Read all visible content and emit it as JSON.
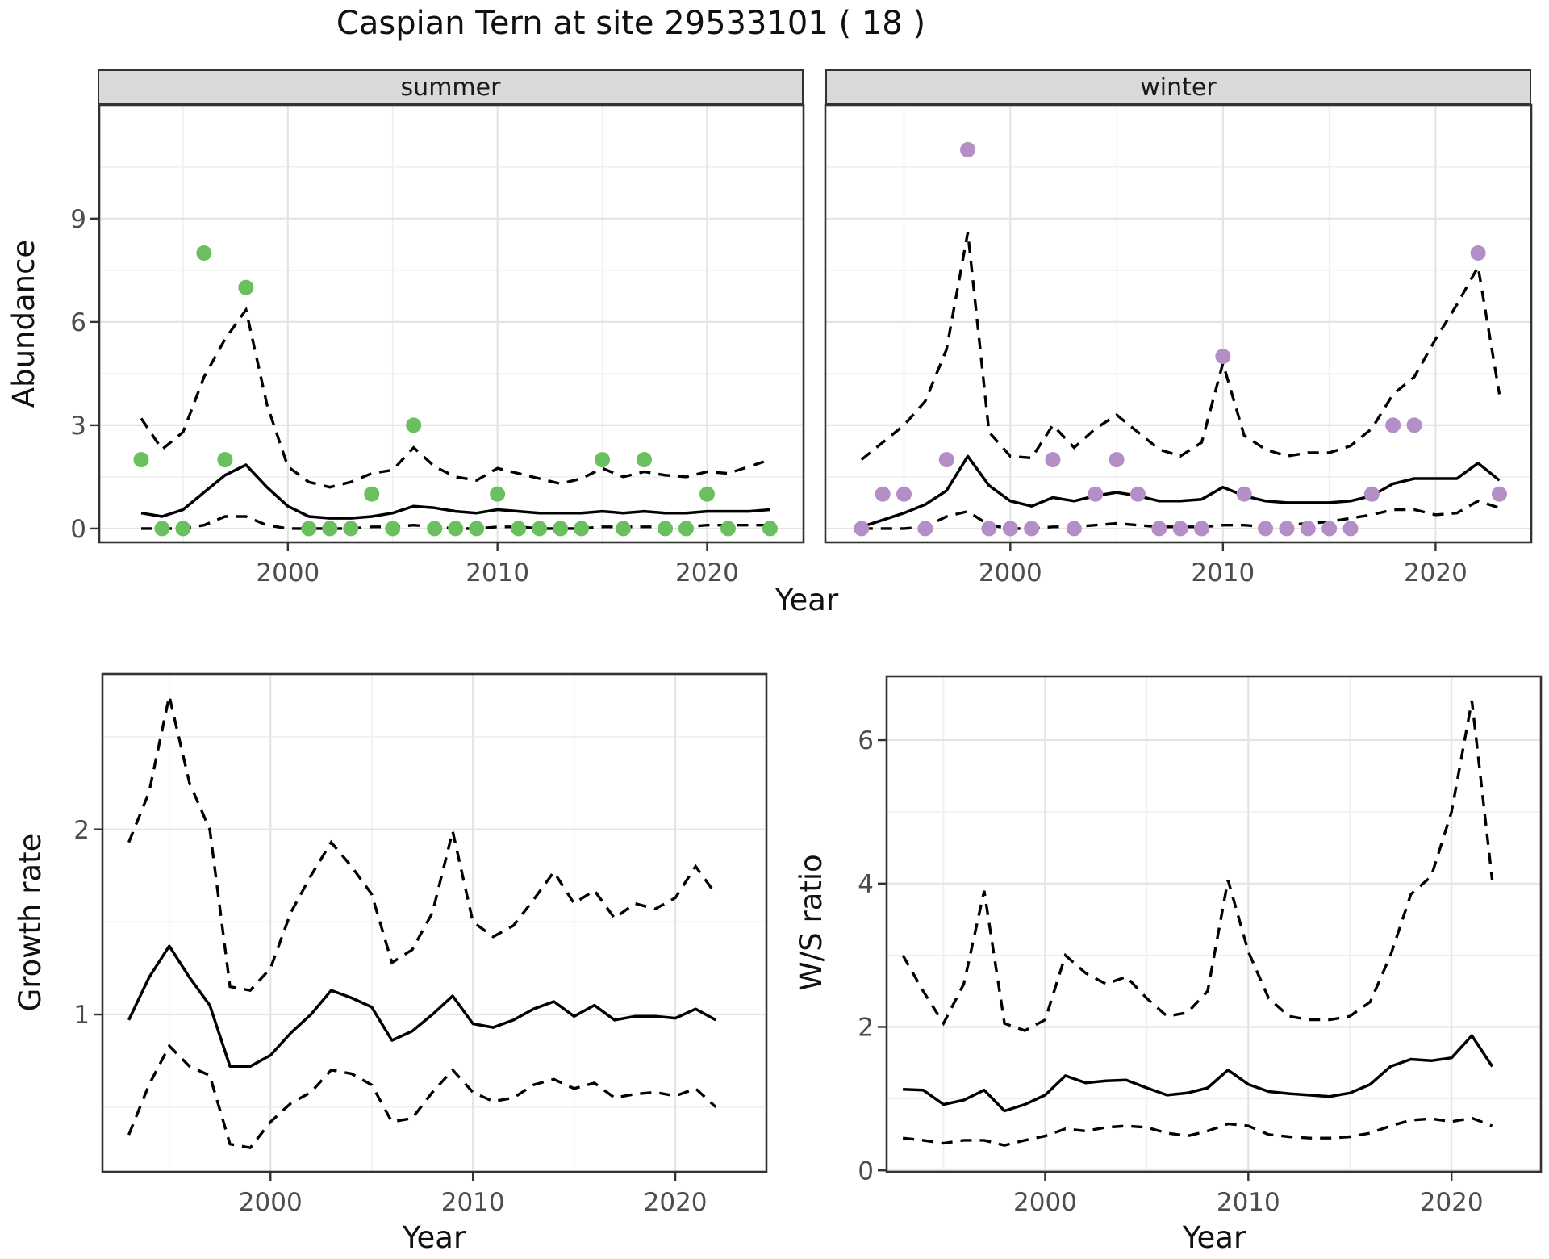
{
  "labels": {
    "title": "Caspian Tern at site 29533101 ( 18 )",
    "year": "Year",
    "abundance": "Abundance",
    "growth_rate": "Growth rate",
    "ws_ratio": "W/S ratio",
    "facet_summer": "summer",
    "facet_winter": "winter"
  },
  "colors": {
    "summer_points": "#6abf5e",
    "winter_points": "#b48ec6",
    "mean_line": "#000000",
    "ci_line": "#000000",
    "strip_bg": "#d9d9d9",
    "panel_border": "#333333",
    "grid_major": "#e4e4e4",
    "grid_minor": "#efefef",
    "tick_text": "#4d4d4d"
  },
  "chart_data": [
    {
      "id": "abundance-summer",
      "type": "line",
      "facet": "summer",
      "xlabel": "Year",
      "ylabel": "Abundance",
      "legend": "none",
      "grid": true,
      "xlim": [
        1991.0,
        2024.6
      ],
      "ylim": [
        -0.4,
        12.3
      ],
      "xticks": [
        2000,
        2010,
        2020
      ],
      "xticks_minor": [
        1995,
        2005,
        2015
      ],
      "yticks": [
        0,
        3,
        6,
        9
      ],
      "yticks_minor": [
        1.5,
        4.5,
        7.5,
        10.5
      ],
      "years": [
        1993,
        1994,
        1995,
        1996,
        1997,
        1998,
        1999,
        2000,
        2001,
        2002,
        2003,
        2004,
        2005,
        2006,
        2007,
        2008,
        2009,
        2010,
        2011,
        2012,
        2013,
        2014,
        2015,
        2016,
        2017,
        2018,
        2019,
        2020,
        2021,
        2022,
        2023
      ],
      "mean": [
        0.45,
        0.35,
        0.55,
        1.05,
        1.55,
        1.85,
        1.2,
        0.65,
        0.35,
        0.3,
        0.3,
        0.35,
        0.45,
        0.65,
        0.6,
        0.5,
        0.45,
        0.55,
        0.5,
        0.45,
        0.45,
        0.45,
        0.5,
        0.45,
        0.5,
        0.45,
        0.45,
        0.5,
        0.5,
        0.5,
        0.55
      ],
      "ci_upper": [
        3.2,
        2.3,
        2.8,
        4.4,
        5.5,
        6.35,
        3.6,
        1.8,
        1.35,
        1.2,
        1.35,
        1.6,
        1.7,
        2.35,
        1.8,
        1.5,
        1.4,
        1.75,
        1.6,
        1.45,
        1.3,
        1.45,
        1.75,
        1.5,
        1.65,
        1.55,
        1.5,
        1.65,
        1.6,
        1.8,
        2.0
      ],
      "ci_lower": [
        0,
        0,
        0,
        0.1,
        0.35,
        0.35,
        0.1,
        0,
        0,
        0,
        0,
        0.05,
        0.05,
        0.1,
        0.05,
        0,
        0,
        0.05,
        0.05,
        0,
        0,
        0,
        0.05,
        0.05,
        0.05,
        0.05,
        0.05,
        0.1,
        0.1,
        0.1,
        0.1
      ],
      "observations": [
        [
          1993,
          2
        ],
        [
          1994,
          0
        ],
        [
          1995,
          0
        ],
        [
          1996,
          8
        ],
        [
          1997,
          2
        ],
        [
          1998,
          7
        ],
        [
          2001,
          0
        ],
        [
          2002,
          0
        ],
        [
          2003,
          0
        ],
        [
          2004,
          1
        ],
        [
          2005,
          0
        ],
        [
          2006,
          3
        ],
        [
          2007,
          0
        ],
        [
          2008,
          0
        ],
        [
          2009,
          0
        ],
        [
          2010,
          1
        ],
        [
          2011,
          0
        ],
        [
          2012,
          0
        ],
        [
          2013,
          0
        ],
        [
          2014,
          0
        ],
        [
          2015,
          2
        ],
        [
          2016,
          0
        ],
        [
          2017,
          2
        ],
        [
          2018,
          0
        ],
        [
          2019,
          0
        ],
        [
          2020,
          1
        ],
        [
          2021,
          0
        ],
        [
          2023,
          0
        ]
      ],
      "point_color": "#6abf5e"
    },
    {
      "id": "abundance-winter",
      "type": "line",
      "facet": "winter",
      "xlabel": "Year",
      "ylabel": "Abundance",
      "legend": "none",
      "grid": true,
      "xlim": [
        1991.3,
        2024.5
      ],
      "ylim": [
        -0.4,
        12.3
      ],
      "xticks": [
        2000,
        2010,
        2020
      ],
      "xticks_minor": [
        1995,
        2005,
        2015
      ],
      "yticks": [
        0,
        3,
        6,
        9
      ],
      "yticks_minor": [
        1.5,
        4.5,
        7.5,
        10.5
      ],
      "years": [
        1993,
        1994,
        1995,
        1996,
        1997,
        1998,
        1999,
        2000,
        2001,
        2002,
        2003,
        2004,
        2005,
        2006,
        2007,
        2008,
        2009,
        2010,
        2011,
        2012,
        2013,
        2014,
        2015,
        2016,
        2017,
        2018,
        2019,
        2020,
        2021,
        2022,
        2023
      ],
      "mean": [
        0.05,
        0.25,
        0.45,
        0.7,
        1.1,
        2.1,
        1.25,
        0.8,
        0.65,
        0.9,
        0.8,
        0.95,
        1.05,
        0.95,
        0.8,
        0.8,
        0.85,
        1.2,
        0.95,
        0.8,
        0.75,
        0.75,
        0.75,
        0.8,
        0.95,
        1.3,
        1.45,
        1.45,
        1.45,
        1.9,
        1.4
      ],
      "ci_upper": [
        2.0,
        2.5,
        3.0,
        3.7,
        5.2,
        8.6,
        2.8,
        2.1,
        2.05,
        3.0,
        2.35,
        2.9,
        3.3,
        2.8,
        2.3,
        2.1,
        2.5,
        4.8,
        2.7,
        2.3,
        2.1,
        2.2,
        2.2,
        2.4,
        2.9,
        3.9,
        4.4,
        5.5,
        6.5,
        7.6,
        3.9
      ],
      "ci_lower": [
        0,
        0,
        0,
        0.05,
        0.35,
        0.5,
        0.1,
        0,
        0,
        0.05,
        0.05,
        0.1,
        0.15,
        0.1,
        0.05,
        0.05,
        0.05,
        0.1,
        0.1,
        0.05,
        0.1,
        0.15,
        0.2,
        0.3,
        0.4,
        0.55,
        0.55,
        0.4,
        0.45,
        0.8,
        0.6
      ],
      "observations": [
        [
          1993,
          0
        ],
        [
          1994,
          1
        ],
        [
          1995,
          1
        ],
        [
          1996,
          0
        ],
        [
          1997,
          2
        ],
        [
          1998,
          11
        ],
        [
          1999,
          0
        ],
        [
          2000,
          0
        ],
        [
          2001,
          0
        ],
        [
          2002,
          2
        ],
        [
          2003,
          0
        ],
        [
          2004,
          1
        ],
        [
          2005,
          2
        ],
        [
          2006,
          1
        ],
        [
          2007,
          0
        ],
        [
          2008,
          0
        ],
        [
          2009,
          0
        ],
        [
          2010,
          5
        ],
        [
          2011,
          1
        ],
        [
          2012,
          0
        ],
        [
          2013,
          0
        ],
        [
          2014,
          0
        ],
        [
          2015,
          0
        ],
        [
          2016,
          0
        ],
        [
          2017,
          1
        ],
        [
          2018,
          3
        ],
        [
          2019,
          3
        ],
        [
          2022,
          8
        ],
        [
          2023,
          1
        ]
      ],
      "point_color": "#b48ec6"
    },
    {
      "id": "growth-rate",
      "type": "line",
      "facet": null,
      "xlabel": "Year",
      "ylabel": "Growth rate",
      "legend": "none",
      "grid": true,
      "xlim": [
        1991.7,
        2024.5
      ],
      "ylim": [
        0.15,
        2.84
      ],
      "xticks": [
        2000,
        2010,
        2020
      ],
      "xticks_minor": [
        1995,
        2005,
        2015
      ],
      "yticks": [
        1,
        2
      ],
      "yticks_minor": [
        0.5,
        1.5,
        2.5
      ],
      "years": [
        1993,
        1994,
        1995,
        1996,
        1997,
        1998,
        1999,
        2000,
        2001,
        2002,
        2003,
        2004,
        2005,
        2006,
        2007,
        2008,
        2009,
        2010,
        2011,
        2012,
        2013,
        2014,
        2015,
        2016,
        2017,
        2018,
        2019,
        2020,
        2021,
        2022
      ],
      "mean": [
        0.97,
        1.2,
        1.37,
        1.2,
        1.05,
        0.72,
        0.72,
        0.78,
        0.9,
        1.0,
        1.13,
        1.09,
        1.04,
        0.86,
        0.91,
        1.0,
        1.1,
        0.95,
        0.93,
        0.97,
        1.03,
        1.07,
        0.99,
        1.05,
        0.97,
        0.99,
        0.99,
        0.98,
        1.03,
        0.97
      ],
      "ci_upper": [
        1.93,
        2.2,
        2.72,
        2.25,
        2.0,
        1.15,
        1.13,
        1.25,
        1.55,
        1.75,
        1.93,
        1.8,
        1.65,
        1.28,
        1.35,
        1.55,
        1.99,
        1.5,
        1.42,
        1.48,
        1.62,
        1.77,
        1.6,
        1.67,
        1.52,
        1.6,
        1.57,
        1.63,
        1.8,
        1.65
      ],
      "ci_lower": [
        0.35,
        0.62,
        0.83,
        0.72,
        0.67,
        0.3,
        0.28,
        0.42,
        0.52,
        0.58,
        0.7,
        0.68,
        0.62,
        0.42,
        0.44,
        0.58,
        0.7,
        0.58,
        0.53,
        0.55,
        0.62,
        0.65,
        0.6,
        0.63,
        0.55,
        0.57,
        0.58,
        0.56,
        0.6,
        0.5
      ],
      "observations": [],
      "point_color": null
    },
    {
      "id": "ws-ratio",
      "type": "line",
      "facet": null,
      "xlabel": "Year",
      "ylabel": "W/S ratio",
      "legend": "none",
      "grid": true,
      "xlim": [
        1992.2,
        2024.4
      ],
      "ylim": [
        -0.02,
        6.89
      ],
      "xticks": [
        2000,
        2010,
        2020
      ],
      "xticks_minor": [
        1995,
        2005,
        2015
      ],
      "yticks": [
        0,
        2,
        4,
        6
      ],
      "yticks_minor": [
        1,
        3,
        5
      ],
      "years": [
        1993,
        1994,
        1995,
        1996,
        1997,
        1998,
        1999,
        2000,
        2001,
        2002,
        2003,
        2004,
        2005,
        2006,
        2007,
        2008,
        2009,
        2010,
        2011,
        2012,
        2013,
        2014,
        2015,
        2016,
        2017,
        2018,
        2019,
        2020,
        2021,
        2022
      ],
      "mean": [
        1.13,
        1.12,
        0.92,
        0.98,
        1.12,
        0.83,
        0.92,
        1.05,
        1.32,
        1.22,
        1.25,
        1.26,
        1.15,
        1.05,
        1.08,
        1.15,
        1.4,
        1.2,
        1.1,
        1.07,
        1.05,
        1.03,
        1.08,
        1.2,
        1.45,
        1.55,
        1.53,
        1.57,
        1.88,
        1.45
      ],
      "ci_upper": [
        3.0,
        2.5,
        2.05,
        2.6,
        3.9,
        2.05,
        1.95,
        2.1,
        3.0,
        2.75,
        2.6,
        2.7,
        2.4,
        2.15,
        2.2,
        2.5,
        4.05,
        3.05,
        2.4,
        2.15,
        2.1,
        2.1,
        2.15,
        2.35,
        3.0,
        3.85,
        4.1,
        5.0,
        6.55,
        4.05
      ],
      "ci_lower": [
        0.45,
        0.42,
        0.38,
        0.42,
        0.42,
        0.35,
        0.42,
        0.48,
        0.58,
        0.55,
        0.6,
        0.62,
        0.6,
        0.52,
        0.48,
        0.55,
        0.65,
        0.62,
        0.5,
        0.47,
        0.45,
        0.45,
        0.47,
        0.52,
        0.62,
        0.7,
        0.72,
        0.68,
        0.73,
        0.62
      ],
      "observations": [],
      "point_color": null
    }
  ]
}
